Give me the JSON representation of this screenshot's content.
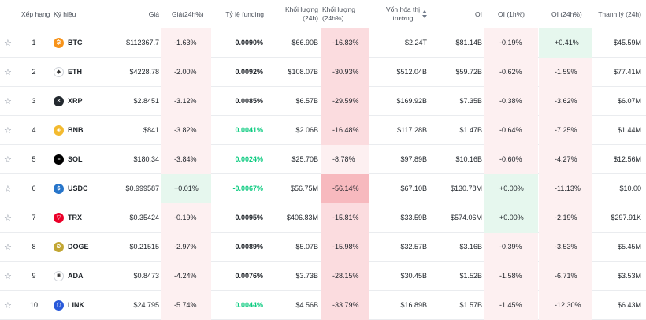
{
  "headers": {
    "rank": "Xếp hạng",
    "symbol": "Ký hiệu",
    "price": "Giá",
    "price_change": "Giá(24h%)",
    "funding": "Tỷ lệ funding",
    "volume": "Khối lượng (24h)",
    "volume_change": "Khối lượng (24h%)",
    "mcap_line1": "Vốn hóa thị",
    "mcap_line2": "trường",
    "oi": "OI",
    "oi_1h": "OI (1h%)",
    "oi_24h": "OI (24h%)",
    "liquidation": "Thanh lý (24h)"
  },
  "rows": [
    {
      "rank": "1",
      "symbol": "BTC",
      "icon": "bitcoin-icon",
      "icon_color": "#f7931a",
      "icon_glyph": "₿",
      "price": "$112367.7",
      "price_change": "-1.63%",
      "funding": "0.0090%",
      "volume": "$66.90B",
      "volume_change": "-16.83%",
      "mcap": "$2.24T",
      "oi": "$81.14B",
      "oi_1h": "-0.19%",
      "oi_24h": "+0.41%",
      "liquidation": "$45.59M"
    },
    {
      "rank": "2",
      "symbol": "ETH",
      "icon": "ethereum-icon",
      "icon_color": "#ffffff",
      "icon_glyph": "◆",
      "price": "$4228.78",
      "price_change": "-2.00%",
      "funding": "0.0092%",
      "volume": "$108.07B",
      "volume_change": "-30.93%",
      "mcap": "$512.04B",
      "oi": "$59.72B",
      "oi_1h": "-0.62%",
      "oi_24h": "-1.59%",
      "liquidation": "$77.41M"
    },
    {
      "rank": "3",
      "symbol": "XRP",
      "icon": "xrp-icon",
      "icon_color": "#23292f",
      "icon_glyph": "✕",
      "price": "$2.8451",
      "price_change": "-3.12%",
      "funding": "0.0085%",
      "volume": "$6.57B",
      "volume_change": "-29.59%",
      "mcap": "$169.92B",
      "oi": "$7.35B",
      "oi_1h": "-0.38%",
      "oi_24h": "-3.62%",
      "liquidation": "$6.07M"
    },
    {
      "rank": "4",
      "symbol": "BNB",
      "icon": "bnb-icon",
      "icon_color": "#f3ba2f",
      "icon_glyph": "◈",
      "price": "$841",
      "price_change": "-3.82%",
      "funding": "0.0041%",
      "volume": "$2.06B",
      "volume_change": "-16.48%",
      "mcap": "$117.28B",
      "oi": "$1.47B",
      "oi_1h": "-0.64%",
      "oi_24h": "-7.25%",
      "liquidation": "$1.44M"
    },
    {
      "rank": "5",
      "symbol": "SOL",
      "icon": "solana-icon",
      "icon_color": "#000000",
      "icon_glyph": "≡",
      "price": "$180.34",
      "price_change": "-3.84%",
      "funding": "0.0024%",
      "volume": "$25.70B",
      "volume_change": "-8.78%",
      "mcap": "$97.89B",
      "oi": "$10.16B",
      "oi_1h": "-0.60%",
      "oi_24h": "-4.27%",
      "liquidation": "$12.56M"
    },
    {
      "rank": "6",
      "symbol": "USDC",
      "icon": "usdc-icon",
      "icon_color": "#2775ca",
      "icon_glyph": "$",
      "price": "$0.999587",
      "price_change": "+0.01%",
      "funding": "-0.0067%",
      "volume": "$56.75M",
      "volume_change": "-56.14%",
      "mcap": "$67.10B",
      "oi": "$130.78M",
      "oi_1h": "+0.00%",
      "oi_24h": "-11.13%",
      "liquidation": "$10.00"
    },
    {
      "rank": "7",
      "symbol": "TRX",
      "icon": "tron-icon",
      "icon_color": "#eb0029",
      "icon_glyph": "▽",
      "price": "$0.35424",
      "price_change": "-0.19%",
      "funding": "0.0095%",
      "volume": "$406.83M",
      "volume_change": "-15.81%",
      "mcap": "$33.59B",
      "oi": "$574.06M",
      "oi_1h": "+0.00%",
      "oi_24h": "-2.19%",
      "liquidation": "$297.91K"
    },
    {
      "rank": "8",
      "symbol": "DOGE",
      "icon": "dogecoin-icon",
      "icon_color": "#c2a633",
      "icon_glyph": "Ð",
      "price": "$0.21515",
      "price_change": "-2.97%",
      "funding": "0.0089%",
      "volume": "$5.07B",
      "volume_change": "-15.98%",
      "mcap": "$32.57B",
      "oi": "$3.16B",
      "oi_1h": "-0.39%",
      "oi_24h": "-3.53%",
      "liquidation": "$5.45M"
    },
    {
      "rank": "9",
      "symbol": "ADA",
      "icon": "cardano-icon",
      "icon_color": "#ffffff",
      "icon_glyph": "✺",
      "price": "$0.8473",
      "price_change": "-4.24%",
      "funding": "0.0076%",
      "volume": "$3.73B",
      "volume_change": "-28.15%",
      "mcap": "$30.45B",
      "oi": "$1.52B",
      "oi_1h": "-1.58%",
      "oi_24h": "-6.71%",
      "liquidation": "$3.53M"
    },
    {
      "rank": "10",
      "symbol": "LINK",
      "icon": "chainlink-icon",
      "icon_color": "#2a5ada",
      "icon_glyph": "⬡",
      "price": "$24.795",
      "price_change": "-5.74%",
      "funding": "0.0044%",
      "volume": "$4.56B",
      "volume_change": "-33.79%",
      "mcap": "$16.89B",
      "oi": "$1.57B",
      "oi_1h": "-1.45%",
      "oi_24h": "-12.30%",
      "liquidation": "$6.43M"
    }
  ],
  "colors": {
    "negative_bg_light": "#fdf0f1",
    "negative_bg_mid": "#fbdcdf",
    "negative_bg_strong": "#f7b9be",
    "positive_bg": "#e6f7ee",
    "funding_green": "#0ecb81"
  }
}
